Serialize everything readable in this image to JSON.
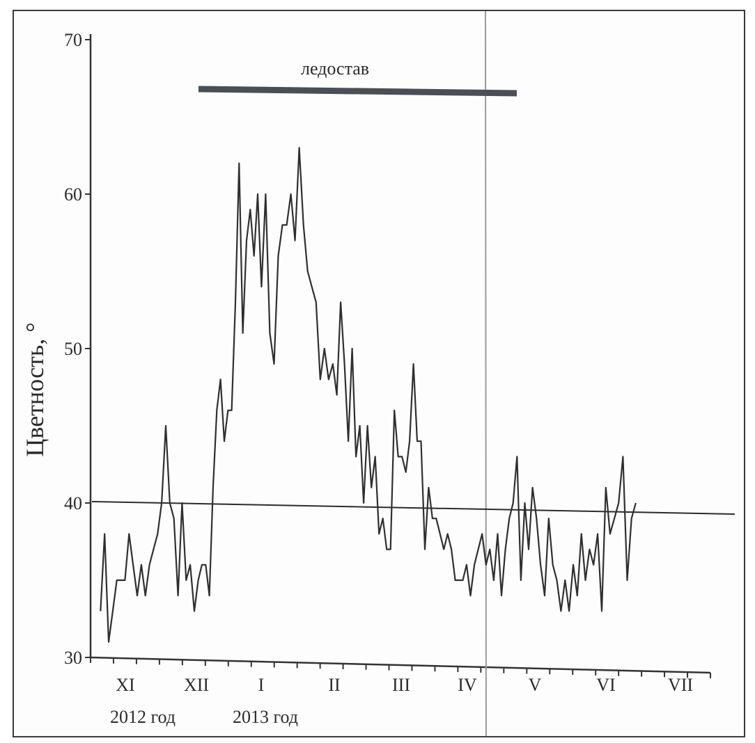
{
  "chart_data": {
    "type": "line",
    "ylabel": "Цветность, °",
    "ylim": [
      30,
      70
    ],
    "yticks": [
      "30",
      "40",
      "50",
      "60",
      "70"
    ],
    "month_labels": [
      "XI",
      "XII",
      "I",
      "II",
      "III",
      "IV",
      "V",
      "VI",
      "VII"
    ],
    "year_labels": [
      "2012 год",
      "2013 год"
    ],
    "annotation": "ледостав",
    "reference_line_value": 40,
    "series": [
      {
        "values": [
          33,
          38,
          31,
          33,
          35,
          35,
          35,
          38,
          36,
          34,
          36,
          34,
          36,
          37,
          38,
          40,
          45,
          40,
          39,
          34,
          40,
          35,
          36,
          33,
          35,
          36,
          36,
          34,
          41,
          46,
          48,
          44,
          46,
          46,
          53,
          62,
          51,
          57,
          59,
          56,
          60,
          54,
          60,
          51,
          49,
          56,
          58,
          58,
          60,
          57,
          63,
          58,
          55,
          54,
          53,
          48,
          50,
          48,
          49,
          47,
          53,
          49,
          44,
          50,
          43,
          45,
          40,
          45,
          41,
          43,
          38,
          39,
          37,
          37,
          46,
          43,
          43,
          42,
          44,
          49,
          44,
          44,
          37,
          41,
          39,
          39,
          38,
          37,
          38,
          37,
          35,
          35,
          35,
          36,
          34,
          36,
          37,
          38,
          36,
          37,
          35,
          38,
          34,
          37,
          39,
          40,
          43,
          35,
          40,
          37,
          41,
          39,
          36,
          34,
          39,
          36,
          35,
          33,
          35,
          33,
          36,
          34,
          38,
          35,
          37,
          36,
          38,
          33,
          41,
          38,
          39,
          40,
          43,
          35,
          39,
          40
        ],
        "x_start_month_index": -0.35,
        "x_end_month_index": 7.4
      }
    ]
  }
}
